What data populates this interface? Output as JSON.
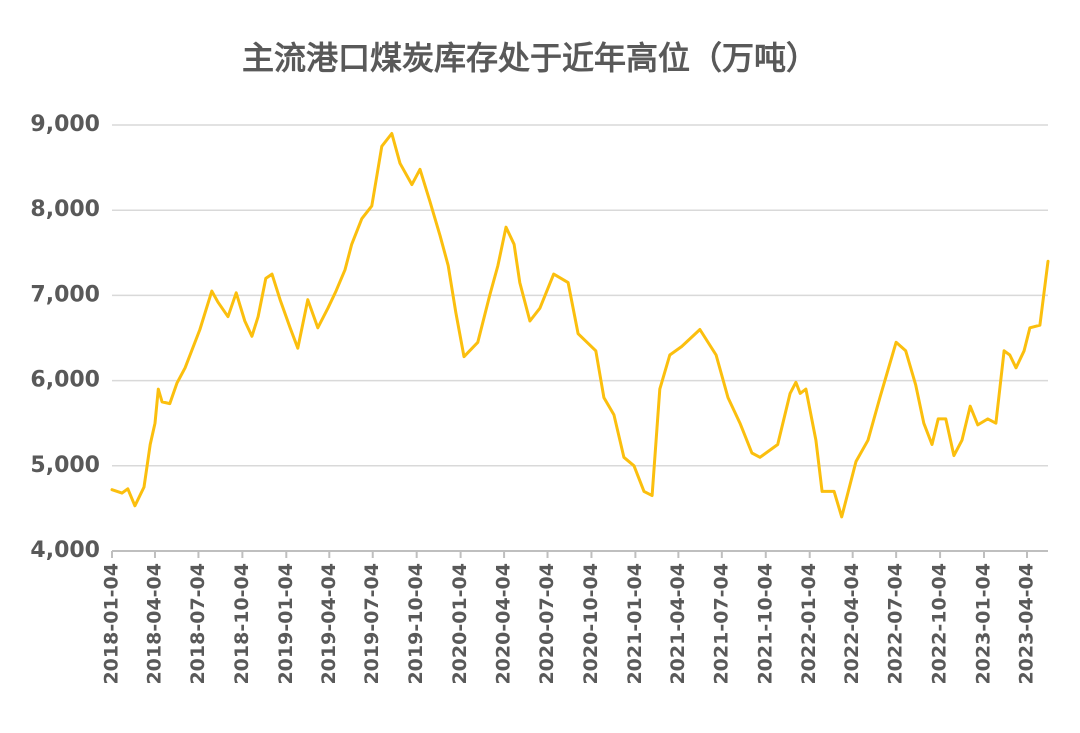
{
  "chart_data": {
    "type": "line",
    "title": "主流港口煤炭库存处于近年高位（万吨）",
    "color": "#fbbf0e",
    "grid": true,
    "x": [
      "2018-01-04",
      "2018-01-25",
      "2018-02-06",
      "2018-02-21",
      "2018-03-12",
      "2018-03-25",
      "2018-04-04",
      "2018-04-11",
      "2018-04-19",
      "2018-05-05",
      "2018-05-20",
      "2018-06-06",
      "2018-07-07",
      "2018-08-01",
      "2018-08-14",
      "2018-09-04",
      "2018-09-21",
      "2018-10-09",
      "2018-10-24",
      "2018-11-06",
      "2018-11-22",
      "2018-12-05",
      "2018-12-22",
      "2019-01-12",
      "2019-01-28",
      "2019-02-18",
      "2019-03-11",
      "2019-04-01",
      "2019-04-18",
      "2019-05-07",
      "2019-05-21",
      "2019-06-11",
      "2019-07-02",
      "2019-07-23",
      "2019-08-13",
      "2019-08-30",
      "2019-09-24",
      "2019-10-11",
      "2019-11-01",
      "2019-11-22",
      "2019-12-09",
      "2019-12-25",
      "2020-01-11",
      "2020-02-09",
      "2020-03-05",
      "2020-03-22",
      "2020-04-08",
      "2020-04-25",
      "2020-05-07",
      "2020-05-28",
      "2020-06-18",
      "2020-07-17",
      "2020-08-16",
      "2020-09-06",
      "2020-10-13",
      "2020-10-30",
      "2020-11-20",
      "2020-12-11",
      "2021-01-01",
      "2021-01-22",
      "2021-02-08",
      "2021-02-24",
      "2021-03-17",
      "2021-04-11",
      "2021-05-19",
      "2021-06-22",
      "2021-07-17",
      "2021-08-11",
      "2021-09-05",
      "2021-09-22",
      "2021-10-29",
      "2021-11-24",
      "2021-12-06",
      "2021-12-15",
      "2021-12-27",
      "2022-01-17",
      "2022-01-30",
      "2022-02-24",
      "2022-03-12",
      "2022-04-11",
      "2022-05-06",
      "2022-05-31",
      "2022-07-04",
      "2022-07-24",
      "2022-08-14",
      "2022-08-31",
      "2022-09-17",
      "2022-09-30",
      "2022-10-16",
      "2022-11-02",
      "2022-11-19",
      "2022-12-06",
      "2022-12-22",
      "2023-01-12",
      "2023-01-29",
      "2023-02-15",
      "2023-02-27",
      "2023-03-12",
      "2023-03-29",
      "2023-04-10",
      "2023-05-01",
      "2023-05-18"
    ],
    "values": [
      4720,
      4680,
      4730,
      4530,
      4750,
      5250,
      5500,
      5900,
      5750,
      5730,
      5970,
      6150,
      6600,
      7050,
      6920,
      6750,
      7030,
      6700,
      6520,
      6750,
      7200,
      7250,
      6950,
      6620,
      6380,
      6950,
      6620,
      6850,
      7050,
      7300,
      7600,
      7900,
      8050,
      8750,
      8900,
      8550,
      8300,
      8480,
      8100,
      7700,
      7350,
      6800,
      6280,
      6450,
      7000,
      7350,
      7800,
      7600,
      7150,
      6700,
      6850,
      7250,
      7150,
      6550,
      6350,
      5800,
      5600,
      5100,
      5000,
      4700,
      4650,
      5900,
      6300,
      6400,
      6600,
      6300,
      5800,
      5500,
      5150,
      5100,
      5250,
      5850,
      5980,
      5850,
      5900,
      5300,
      4700,
      4700,
      4400,
      5050,
      5300,
      5800,
      6450,
      6350,
      5950,
      5500,
      5250,
      5550,
      5550,
      5120,
      5300,
      5700,
      5480,
      5550,
      5500,
      6350,
      6300,
      6150,
      6350,
      6620,
      6650,
      7400
    ],
    "xlim": [
      "2018-01-04",
      "2023-05-18"
    ],
    "xticks": [
      "2018-01-04",
      "2018-04-04",
      "2018-07-04",
      "2018-10-04",
      "2019-01-04",
      "2019-04-04",
      "2019-07-04",
      "2019-10-04",
      "2020-01-04",
      "2020-04-04",
      "2020-07-04",
      "2020-10-04",
      "2021-01-04",
      "2021-04-04",
      "2021-07-04",
      "2021-10-04",
      "2022-01-04",
      "2022-04-04",
      "2022-07-04",
      "2022-10-04",
      "2023-01-04",
      "2023-04-04"
    ],
    "ylim": [
      4000,
      9000
    ],
    "yticks": [
      {
        "value": 4000,
        "label": "4,000"
      },
      {
        "value": 5000,
        "label": "5,000"
      },
      {
        "value": 6000,
        "label": "6,000"
      },
      {
        "value": 7000,
        "label": "7,000"
      },
      {
        "value": 8000,
        "label": "8,000"
      },
      {
        "value": 9000,
        "label": "9,000"
      }
    ]
  }
}
